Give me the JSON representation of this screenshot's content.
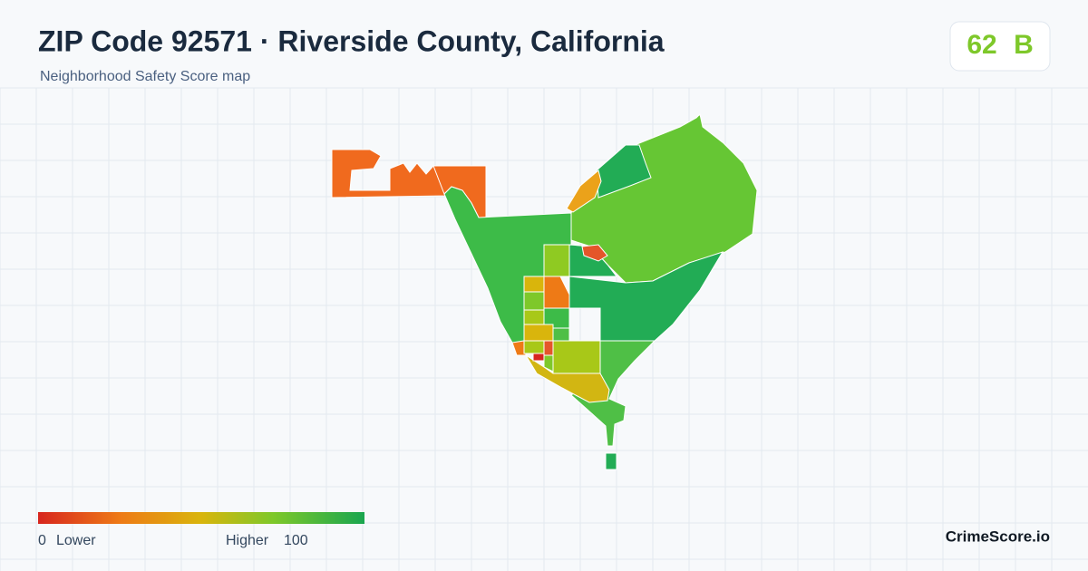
{
  "header": {
    "title": "ZIP Code 92571 · Riverside County, California",
    "subtitle": "Neighborhood Safety Score map"
  },
  "score": {
    "value": 62,
    "grade": "B"
  },
  "legend": {
    "min": 0,
    "min_label": "Lower",
    "max_label": "Higher",
    "max": 100
  },
  "brand": "CrimeScore.io"
}
